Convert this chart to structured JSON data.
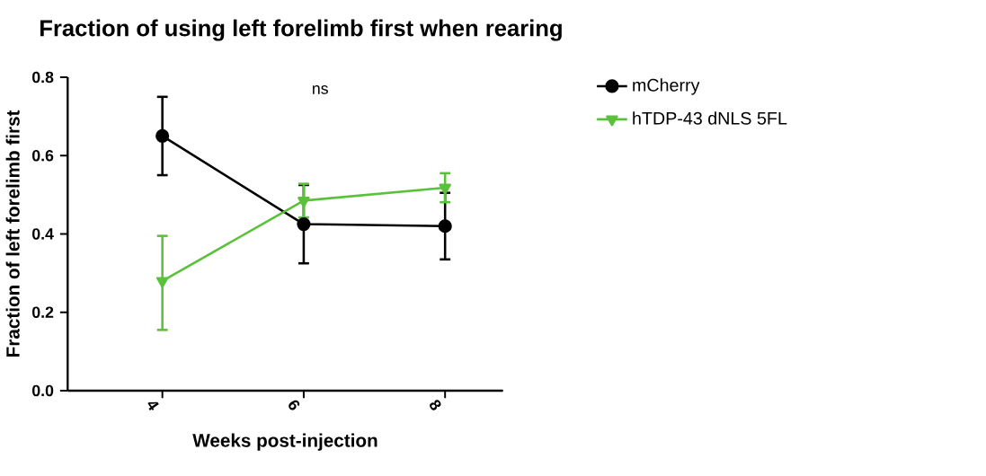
{
  "chart_data": {
    "type": "line",
    "title": "Fraction of using left forelimb first when rearing",
    "xlabel": "Weeks post-injection",
    "ylabel": "Fraction of left forelimb first",
    "categories": [
      "4",
      "6",
      "8"
    ],
    "series": [
      {
        "name": "mCherry",
        "color": "#000000",
        "marker": "circle",
        "values": [
          0.65,
          0.425,
          0.42
        ],
        "errors": [
          0.1,
          0.1,
          0.085
        ]
      },
      {
        "name": "hTDP-43 dNLS 5FL",
        "color": "#5ac13a",
        "marker": "triangle",
        "values": [
          0.28,
          0.485,
          0.518
        ],
        "errors": [
          [
            0.155,
            0.395
          ],
          0.043,
          0.037
        ]
      }
    ],
    "ylim": [
      0,
      0.8
    ],
    "yticks": [
      {
        "value": 0,
        "label": "0.0"
      },
      0.2,
      0.4,
      0.6,
      0.8
    ],
    "annotations": [
      "ns"
    ],
    "legend": "right",
    "grid": false
  }
}
